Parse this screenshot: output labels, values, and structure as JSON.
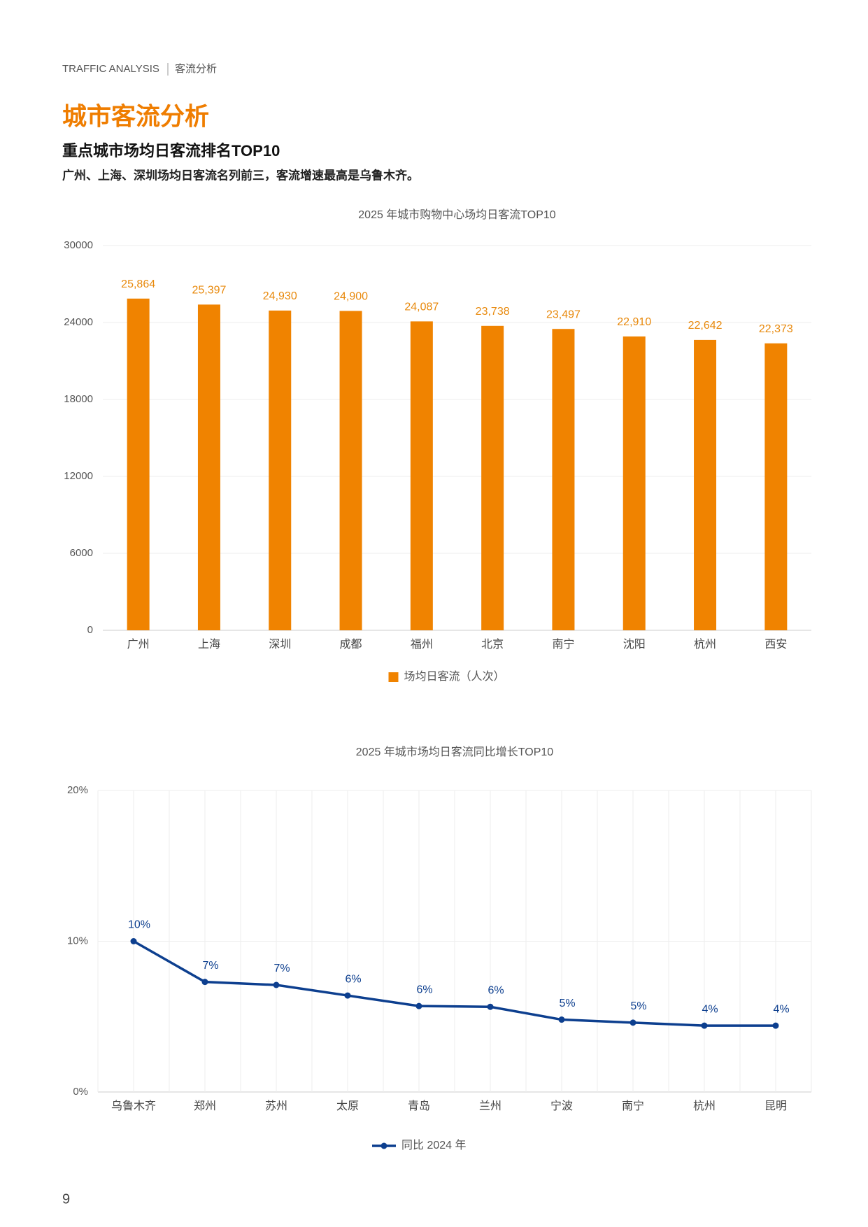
{
  "header": {
    "section_en": "TRAFFIC ANALYSIS",
    "section_cn": "客流分析"
  },
  "title": "城市客流分析",
  "subtitle": "重点城市场均日客流排名TOP10",
  "summary": "广州、上海、深圳场均日客流名列前三，客流增速最高是乌鲁木齐。",
  "page_number": "9",
  "chart_data": [
    {
      "type": "bar",
      "title": "2025 年城市购物中心场均日客流TOP10",
      "categories": [
        "广州",
        "上海",
        "深圳",
        "成都",
        "福州",
        "北京",
        "南宁",
        "沈阳",
        "杭州",
        "西安"
      ],
      "series": [
        {
          "name": "场均日客流（人次）",
          "color": "#f08300",
          "values": [
            25864,
            25397,
            24930,
            24900,
            24087,
            23738,
            23497,
            22910,
            22642,
            22373
          ],
          "value_labels": [
            "25,864",
            "25,397",
            "24,930",
            "24,900",
            "24,087",
            "23,738",
            "23,497",
            "22,910",
            "22,642",
            "22,373"
          ]
        }
      ],
      "ylim": [
        0,
        30000
      ],
      "yticks": [
        0,
        6000,
        12000,
        18000,
        24000,
        30000
      ],
      "grid": true,
      "legend": "bottom"
    },
    {
      "type": "line",
      "title": "2025 年城市场均日客流同比增长TOP10",
      "categories": [
        "乌鲁木齐",
        "郑州",
        "苏州",
        "太原",
        "青岛",
        "兰州",
        "宁波",
        "南宁",
        "杭州",
        "昆明"
      ],
      "series": [
        {
          "name": "同比 2024 年",
          "color": "#0d3f8f",
          "values": [
            10.0,
            7.3,
            7.1,
            6.4,
            5.7,
            5.65,
            4.8,
            4.6,
            4.4,
            4.4
          ],
          "value_labels": [
            "10%",
            "7%",
            "7%",
            "6%",
            "6%",
            "6%",
            "5%",
            "5%",
            "4%",
            "4%"
          ]
        }
      ],
      "ylim": [
        0,
        20
      ],
      "yticks": [
        {
          "value": 0,
          "label": "0%"
        },
        {
          "value": 10,
          "label": "10%"
        },
        {
          "value": 20,
          "label": "20%"
        }
      ],
      "grid": true,
      "legend": "bottom"
    }
  ]
}
